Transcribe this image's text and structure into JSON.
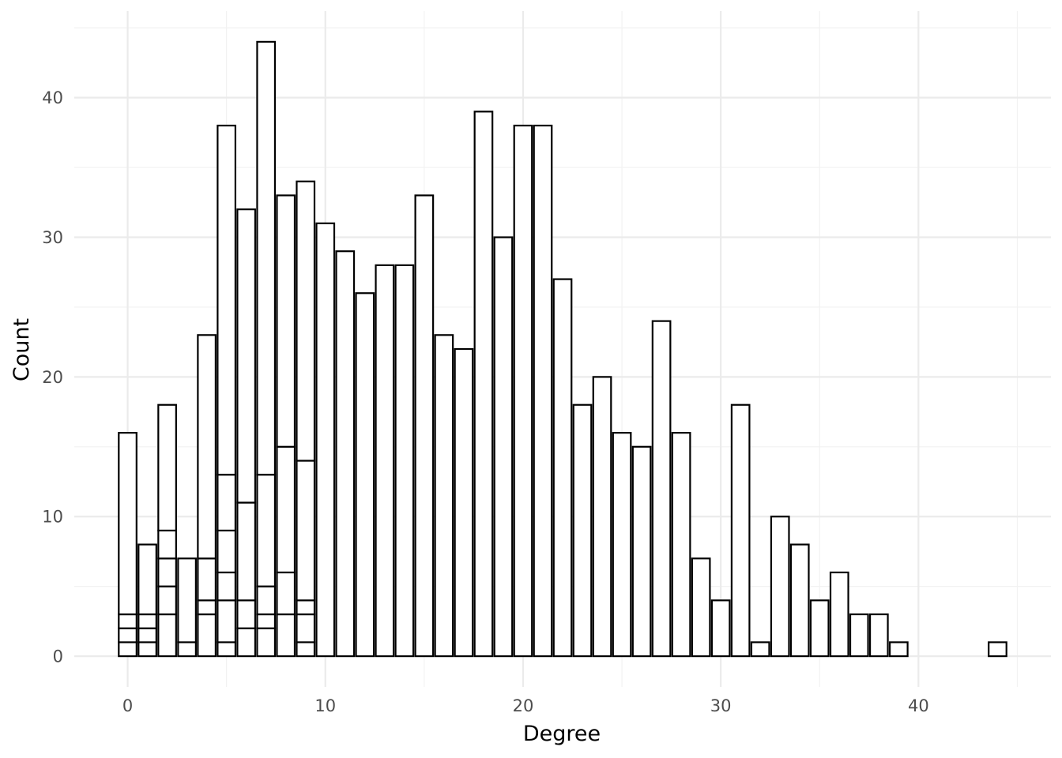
{
  "chart_data": {
    "type": "bar",
    "subtype": "stacked-histogram",
    "title": "",
    "xlabel": "Degree",
    "ylabel": "Count",
    "xlim": [
      -2.7,
      46.7
    ],
    "ylim": [
      -2.2,
      46.2
    ],
    "x_ticks": [
      0,
      10,
      20,
      30,
      40
    ],
    "y_ticks": [
      0,
      10,
      20,
      30,
      40
    ],
    "grid": true,
    "legend": "none",
    "bar_fill": "#ffffff",
    "bar_stroke": "#000000",
    "bins": [
      {
        "x": 0,
        "stack": [
          1,
          2,
          3,
          16
        ]
      },
      {
        "x": 1,
        "stack": [
          1,
          2,
          3,
          8
        ]
      },
      {
        "x": 2,
        "stack": [
          3,
          5,
          7,
          9,
          18
        ]
      },
      {
        "x": 3,
        "stack": [
          1,
          7
        ]
      },
      {
        "x": 4,
        "stack": [
          3,
          4,
          7,
          23
        ]
      },
      {
        "x": 5,
        "stack": [
          1,
          4,
          6,
          9,
          13,
          38
        ]
      },
      {
        "x": 6,
        "stack": [
          2,
          4,
          11,
          32
        ]
      },
      {
        "x": 7,
        "stack": [
          2,
          3,
          5,
          13,
          44
        ]
      },
      {
        "x": 8,
        "stack": [
          3,
          6,
          15,
          33
        ]
      },
      {
        "x": 9,
        "stack": [
          1,
          3,
          4,
          14,
          34
        ]
      },
      {
        "x": 10,
        "stack": [
          31
        ]
      },
      {
        "x": 11,
        "stack": [
          29
        ]
      },
      {
        "x": 12,
        "stack": [
          26
        ]
      },
      {
        "x": 13,
        "stack": [
          28
        ]
      },
      {
        "x": 14,
        "stack": [
          28
        ]
      },
      {
        "x": 15,
        "stack": [
          33
        ]
      },
      {
        "x": 16,
        "stack": [
          23
        ]
      },
      {
        "x": 17,
        "stack": [
          22
        ]
      },
      {
        "x": 18,
        "stack": [
          39
        ]
      },
      {
        "x": 19,
        "stack": [
          30
        ]
      },
      {
        "x": 20,
        "stack": [
          38
        ]
      },
      {
        "x": 21,
        "stack": [
          38
        ]
      },
      {
        "x": 22,
        "stack": [
          27
        ]
      },
      {
        "x": 23,
        "stack": [
          18
        ]
      },
      {
        "x": 24,
        "stack": [
          20
        ]
      },
      {
        "x": 25,
        "stack": [
          16
        ]
      },
      {
        "x": 26,
        "stack": [
          15
        ]
      },
      {
        "x": 27,
        "stack": [
          24
        ]
      },
      {
        "x": 28,
        "stack": [
          16
        ]
      },
      {
        "x": 29,
        "stack": [
          7
        ]
      },
      {
        "x": 30,
        "stack": [
          4
        ]
      },
      {
        "x": 31,
        "stack": [
          18
        ]
      },
      {
        "x": 32,
        "stack": [
          1
        ]
      },
      {
        "x": 33,
        "stack": [
          10
        ]
      },
      {
        "x": 34,
        "stack": [
          8
        ]
      },
      {
        "x": 35,
        "stack": [
          4
        ]
      },
      {
        "x": 36,
        "stack": [
          6
        ]
      },
      {
        "x": 37,
        "stack": [
          3
        ]
      },
      {
        "x": 38,
        "stack": [
          3
        ]
      },
      {
        "x": 39,
        "stack": [
          1
        ]
      },
      {
        "x": 44,
        "stack": [
          1
        ]
      }
    ]
  }
}
